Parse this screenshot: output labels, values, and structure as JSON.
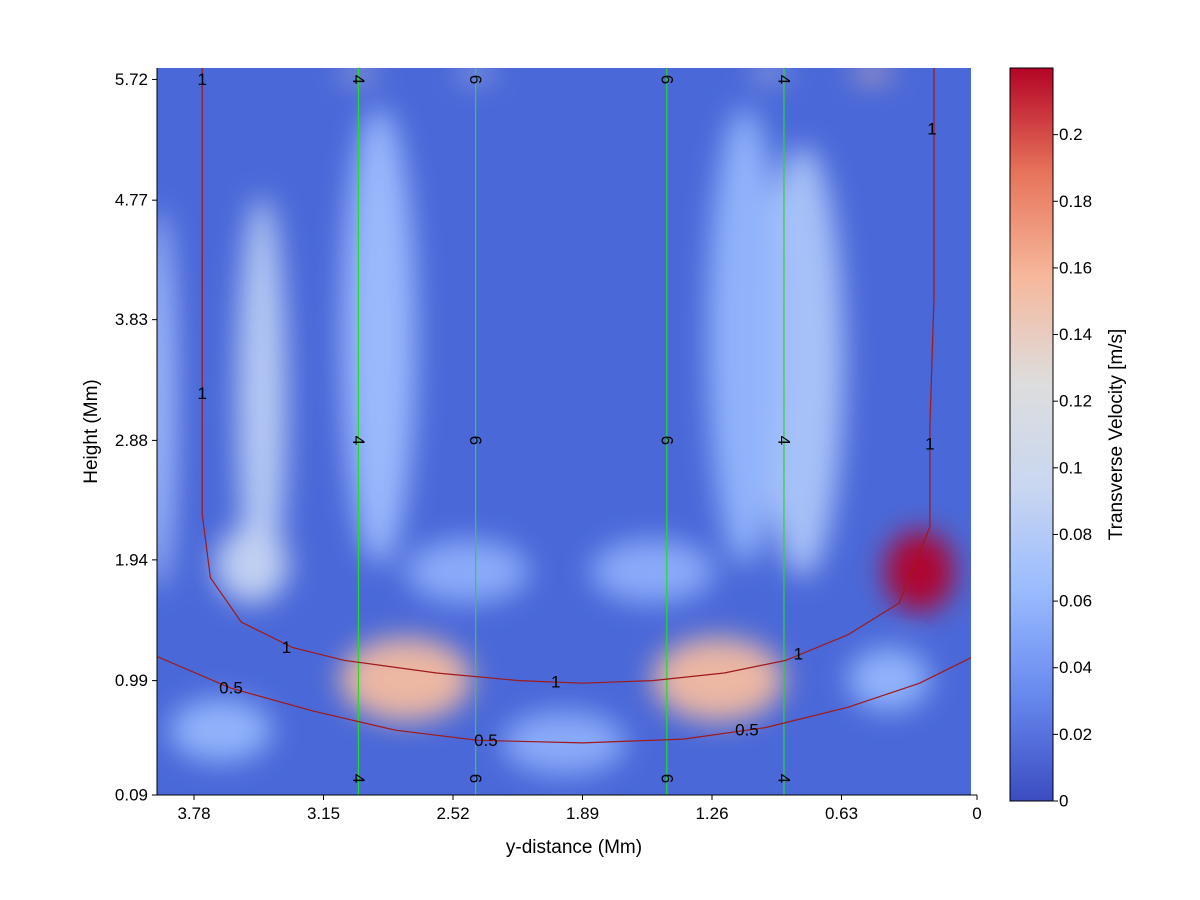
{
  "chart_data": {
    "type": "heatmap",
    "title": "",
    "xlabel": "y-distance (Mm)",
    "ylabel": "Height (Mm)",
    "x_reversed": true,
    "xlim": [
      3.96,
      0
    ],
    "ylim": [
      0.09,
      5.81
    ],
    "x_ticks": [
      3.78,
      3.15,
      2.52,
      1.89,
      1.26,
      0.63,
      0
    ],
    "x_tick_labels": [
      "3.78",
      "3.15",
      "2.52",
      "1.89",
      "1.26",
      "0.63",
      "0"
    ],
    "y_ticks": [
      0.09,
      0.99,
      1.94,
      2.88,
      3.83,
      4.77,
      5.72
    ],
    "y_tick_labels": [
      "0.09",
      "0.99",
      "1.94",
      "2.88",
      "3.83",
      "4.77",
      "5.72"
    ],
    "colorbar": {
      "label": "Transverse Velocity [m/s]",
      "range": [
        0,
        0.22
      ],
      "ticks": [
        0,
        0.02,
        0.04,
        0.06,
        0.08,
        0.1,
        0.12,
        0.14,
        0.16,
        0.18,
        0.2
      ],
      "tick_labels": [
        "0",
        "0.02",
        "0.04",
        "0.06",
        "0.08",
        "0.1",
        "0.12",
        "0.14",
        "0.16",
        "0.18",
        "0.2"
      ],
      "colormap": "coolwarm",
      "colors": [
        "#3b4cc0",
        "#6788ee",
        "#9abbff",
        "#c9d7f0",
        "#dddddd",
        "#f6b89c",
        "#e7745b",
        "#b40426"
      ]
    },
    "background_color": "#4a68d8",
    "hotspots": [
      {
        "x": 2.75,
        "y": 1.0,
        "rx": 0.32,
        "ry": 0.33,
        "value": 0.155
      },
      {
        "x": 1.23,
        "y": 1.0,
        "rx": 0.32,
        "ry": 0.33,
        "value": 0.155
      },
      {
        "x": 0.25,
        "y": 1.85,
        "rx": 0.17,
        "ry": 0.32,
        "value": 0.22
      },
      {
        "x": 0.48,
        "y": 5.77,
        "rx": 0.1,
        "ry": 0.05,
        "value": 0.15
      },
      {
        "x": 2.98,
        "y": 5.77,
        "rx": 0.09,
        "ry": 0.04,
        "value": 0.13
      },
      {
        "x": 2.41,
        "y": 5.77,
        "rx": 0.09,
        "ry": 0.04,
        "value": 0.11
      },
      {
        "x": 0.98,
        "y": 5.77,
        "rx": 0.09,
        "ry": 0.04,
        "value": 0.12
      },
      {
        "x": 3.45,
        "y": 3.2,
        "rx": 0.12,
        "ry": 1.6,
        "value": 0.085
      },
      {
        "x": 0.82,
        "y": 3.5,
        "rx": 0.2,
        "ry": 1.7,
        "value": 0.075
      },
      {
        "x": 3.5,
        "y": 1.9,
        "rx": 0.18,
        "ry": 0.3,
        "value": 0.09
      },
      {
        "x": 2.88,
        "y": 3.7,
        "rx": 0.18,
        "ry": 1.8,
        "value": 0.065
      },
      {
        "x": 1.1,
        "y": 3.7,
        "rx": 0.18,
        "ry": 1.8,
        "value": 0.06
      },
      {
        "x": 3.95,
        "y": 3.2,
        "rx": 0.08,
        "ry": 1.5,
        "value": 0.07
      },
      {
        "x": 0.4,
        "y": 1.0,
        "rx": 0.2,
        "ry": 0.25,
        "value": 0.06
      },
      {
        "x": 3.65,
        "y": 0.6,
        "rx": 0.25,
        "ry": 0.25,
        "value": 0.06
      },
      {
        "x": 1.98,
        "y": 0.5,
        "rx": 0.3,
        "ry": 0.25,
        "value": 0.055
      },
      {
        "x": 2.45,
        "y": 1.85,
        "rx": 0.3,
        "ry": 0.25,
        "value": 0.055
      },
      {
        "x": 1.55,
        "y": 1.85,
        "rx": 0.3,
        "ry": 0.25,
        "value": 0.055
      }
    ],
    "vertical_contours": {
      "color": "#22dd22",
      "lines": [
        {
          "x": 2.98,
          "label": "4"
        },
        {
          "x": 2.41,
          "label": "6"
        },
        {
          "x": 1.48,
          "label": "6"
        },
        {
          "x": 0.91,
          "label": "4"
        }
      ],
      "label_heights": [
        5.72,
        2.88,
        0.22
      ]
    },
    "red_contours": {
      "color": "#a01818",
      "lines": [
        {
          "label": "1",
          "points": [
            [
              3.74,
              5.81
            ],
            [
              3.74,
              3.2
            ],
            [
              3.74,
              2.3
            ],
            [
              3.7,
              1.8
            ],
            [
              3.55,
              1.45
            ],
            [
              3.3,
              1.25
            ],
            [
              3.05,
              1.15
            ],
            [
              2.6,
              1.05
            ],
            [
              2.2,
              0.99
            ],
            [
              1.89,
              0.97
            ],
            [
              1.55,
              0.99
            ],
            [
              1.2,
              1.05
            ],
            [
              0.9,
              1.15
            ],
            [
              0.6,
              1.35
            ],
            [
              0.35,
              1.6
            ],
            [
              0.2,
              2.2
            ],
            [
              0.2,
              3.0
            ],
            [
              0.18,
              4.0
            ],
            [
              0.18,
              5.2
            ],
            [
              0.18,
              5.81
            ]
          ],
          "labels": [
            [
              3.74,
              5.72
            ],
            [
              3.74,
              3.25
            ],
            [
              3.33,
              1.25
            ],
            [
              2.02,
              0.98
            ],
            [
              0.84,
              1.2
            ],
            [
              0.19,
              5.33
            ],
            [
              0.2,
              2.85
            ]
          ]
        },
        {
          "label": "0.5",
          "points": [
            [
              3.96,
              1.18
            ],
            [
              3.6,
              0.93
            ],
            [
              3.2,
              0.75
            ],
            [
              2.8,
              0.6
            ],
            [
              2.4,
              0.52
            ],
            [
              1.89,
              0.5
            ],
            [
              1.4,
              0.53
            ],
            [
              1.0,
              0.62
            ],
            [
              0.6,
              0.78
            ],
            [
              0.25,
              0.97
            ],
            [
              0,
              1.17
            ]
          ],
          "labels": [
            [
              3.6,
              0.93
            ],
            [
              2.36,
              0.52
            ],
            [
              1.09,
              0.6
            ]
          ]
        }
      ]
    }
  }
}
